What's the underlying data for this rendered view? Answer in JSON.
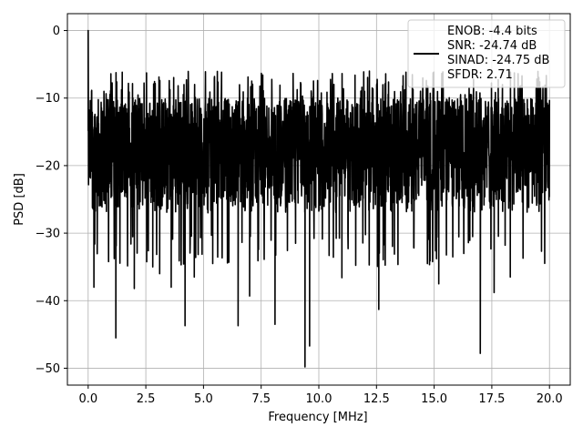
{
  "chart_data": {
    "type": "line",
    "title": "",
    "xlabel": "Frequency [MHz]",
    "ylabel": "PSD [dB]",
    "xlim": [
      -0.9,
      20.9
    ],
    "ylim": [
      -52.5,
      2.5
    ],
    "x_ticks": [
      0.0,
      2.5,
      5.0,
      7.5,
      10.0,
      12.5,
      15.0,
      17.5,
      20.0
    ],
    "x_tick_labels": [
      "0.0",
      "2.5",
      "5.0",
      "7.5",
      "10.0",
      "12.5",
      "15.0",
      "17.5",
      "20.0"
    ],
    "y_ticks": [
      0,
      -10,
      -20,
      -30,
      -40,
      -50
    ],
    "y_tick_labels": [
      "0",
      "−10",
      "−20",
      "−30",
      "−40",
      "−50"
    ],
    "grid": true,
    "legend_position": "top-right",
    "series": [
      {
        "color": "#000000",
        "x_range": [
          0.0,
          20.0
        ],
        "noise_band": [
          -27,
          -10
        ],
        "peaks": [
          {
            "x": 0.0,
            "y": 0.0
          }
        ],
        "dips": [
          {
            "x": 0.25,
            "y": -38.0
          },
          {
            "x": 1.2,
            "y": -45.5
          },
          {
            "x": 2.0,
            "y": -38.2
          },
          {
            "x": 2.8,
            "y": -35.0
          },
          {
            "x": 3.1,
            "y": -36.0
          },
          {
            "x": 3.6,
            "y": -38.0
          },
          {
            "x": 4.2,
            "y": -43.7
          },
          {
            "x": 4.6,
            "y": -36.5
          },
          {
            "x": 5.4,
            "y": -34.5
          },
          {
            "x": 6.5,
            "y": -43.7
          },
          {
            "x": 7.0,
            "y": -39.3
          },
          {
            "x": 8.1,
            "y": -43.5
          },
          {
            "x": 9.4,
            "y": -49.8
          },
          {
            "x": 9.6,
            "y": -46.7
          },
          {
            "x": 11.0,
            "y": -36.6
          },
          {
            "x": 12.6,
            "y": -41.3
          },
          {
            "x": 15.2,
            "y": -37.5
          },
          {
            "x": 17.0,
            "y": -47.8
          },
          {
            "x": 17.6,
            "y": -38.8
          },
          {
            "x": 18.3,
            "y": -36.5
          }
        ]
      }
    ],
    "legend": {
      "lines": [
        "ENOB: -4.4 bits",
        "SNR: -24.74 dB",
        "SINAD: -24.75 dB",
        "SFDR: 2.71"
      ]
    }
  }
}
